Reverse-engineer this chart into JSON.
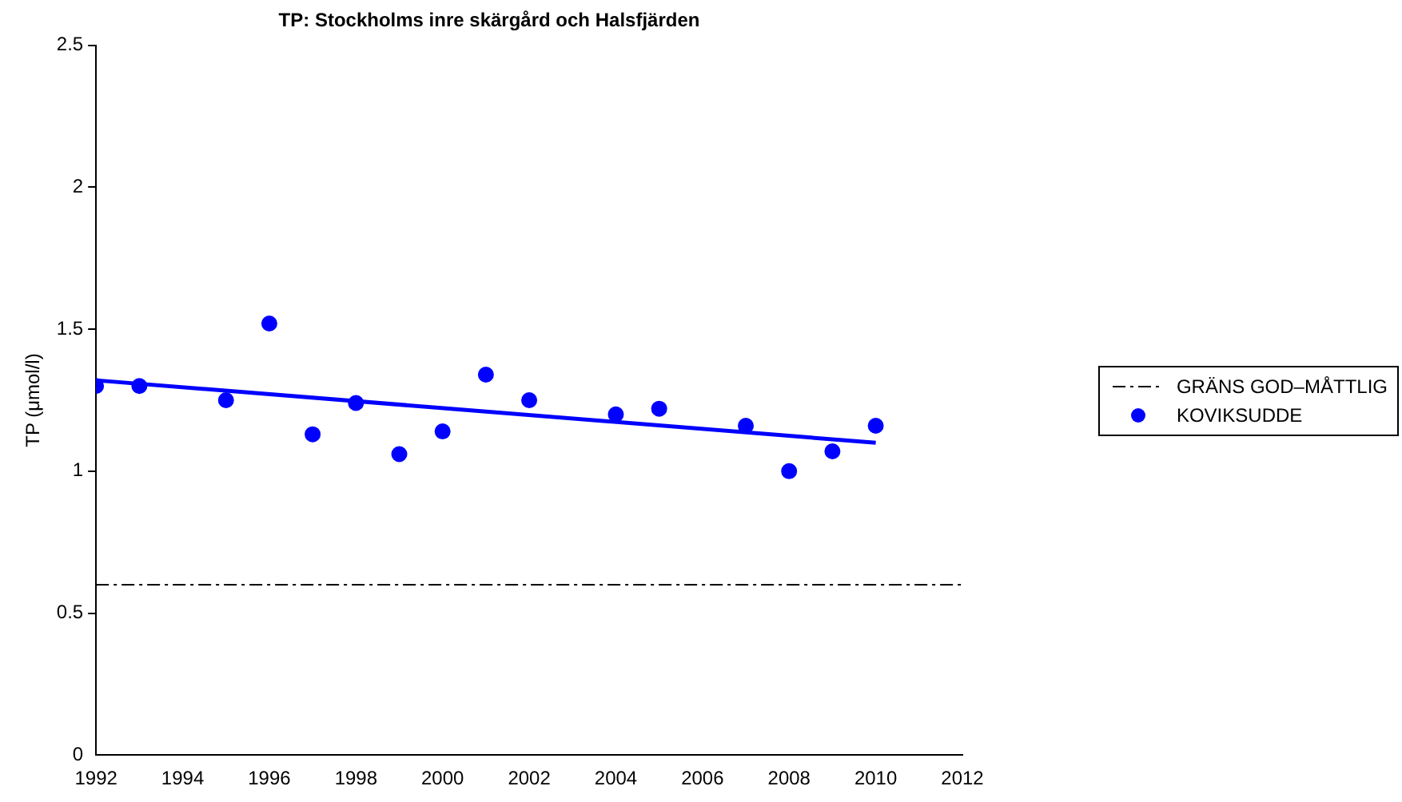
{
  "chart_data": {
    "type": "scatter",
    "title": "TP: Stockholms inre skärgård och Halsfjärden",
    "ylabel": "TP (μmol/l)",
    "xlim": [
      1992,
      2012
    ],
    "xticks": [
      1992,
      1994,
      1996,
      1998,
      2000,
      2002,
      2004,
      2006,
      2008,
      2010,
      2012
    ],
    "ylim": [
      0,
      2.5
    ],
    "yticks": [
      0,
      0.5,
      1,
      1.5,
      2,
      2.5
    ],
    "grid": false,
    "legend": "right",
    "marker": "circle",
    "ref_lines": [
      {
        "axis": "y",
        "value": 0.6,
        "label": "GRÄNS GOD–MÅTTLIG",
        "color": "#000000",
        "line_style": "dashed"
      }
    ],
    "series": [
      {
        "name": "KOVIKSUDDE",
        "color": "#0000ff",
        "x": [
          1992,
          1993,
          1995,
          1996,
          1997,
          1998,
          1999,
          2000,
          2001,
          2002,
          2004,
          2005,
          2007,
          2008,
          2009,
          2010
        ],
        "values": [
          1.3,
          1.3,
          1.25,
          1.52,
          1.13,
          1.24,
          1.06,
          1.14,
          1.34,
          1.25,
          1.2,
          1.22,
          1.16,
          1.0,
          1.07,
          1.16
        ]
      },
      {
        "type": "line",
        "color": "#0000ff",
        "marker": "none",
        "x": [
          1992,
          2010
        ],
        "values": [
          1.32,
          1.1
        ]
      }
    ]
  }
}
